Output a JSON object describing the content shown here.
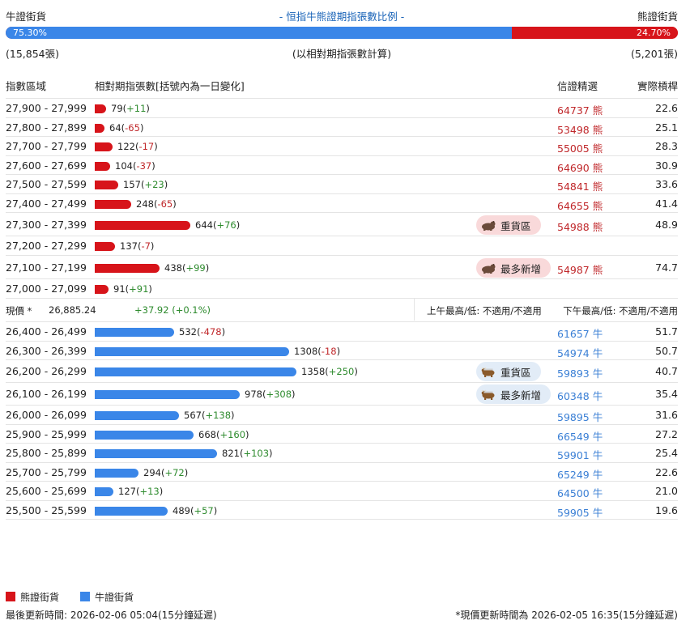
{
  "header": {
    "bull_label": "牛證街貨",
    "title": "- 恒指牛熊證期指張數比例 -",
    "bear_label": "熊證街貨",
    "bull_pct": "75.30%",
    "bear_pct": "24.70%",
    "bull_count": "(15,854張)",
    "basis_note": "(以相對期指張數計算)",
    "bear_count": "(5,201張)"
  },
  "columns": {
    "range": "指數區域",
    "count": "相對期指張數[括號內為一日變化]",
    "issuer": "信證精選",
    "leverage": "實際槓桿"
  },
  "colors": {
    "bear": "#d7141a",
    "bull": "#3a86e8"
  },
  "chart_data": {
    "type": "bar",
    "orientation": "horizontal",
    "ratio": {
      "bull_pct": 75.3,
      "bear_pct": 24.7
    },
    "bear_rows": [
      {
        "range": "27,900 - 27,999",
        "value": 79,
        "chg": "+11",
        "issuer": "64737 熊",
        "lev": "22.6"
      },
      {
        "range": "27,800 - 27,899",
        "value": 64,
        "chg": "-65",
        "issuer": "53498 熊",
        "lev": "25.1"
      },
      {
        "range": "27,700 - 27,799",
        "value": 122,
        "chg": "-17",
        "issuer": "55005 熊",
        "lev": "28.3"
      },
      {
        "range": "27,600 - 27,699",
        "value": 104,
        "chg": "-37",
        "issuer": "64690 熊",
        "lev": "30.9"
      },
      {
        "range": "27,500 - 27,599",
        "value": 157,
        "chg": "+23",
        "issuer": "54841 熊",
        "lev": "33.6"
      },
      {
        "range": "27,400 - 27,499",
        "value": 248,
        "chg": "-65",
        "issuer": "64655 熊",
        "lev": "41.4"
      },
      {
        "range": "27,300 - 27,399",
        "value": 644,
        "chg": "+76",
        "tag": "重貨區",
        "issuer": "54988 熊",
        "lev": "48.9"
      },
      {
        "range": "27,200 - 27,299",
        "value": 137,
        "chg": "-7",
        "issuer": "",
        "lev": ""
      },
      {
        "range": "27,100 - 27,199",
        "value": 438,
        "chg": "+99",
        "tag": "最多新增",
        "issuer": "54987 熊",
        "lev": "74.7"
      },
      {
        "range": "27,000 - 27,099",
        "value": 91,
        "chg": "+91",
        "issuer": "",
        "lev": ""
      }
    ],
    "bull_rows": [
      {
        "range": "26,400 - 26,499",
        "value": 532,
        "chg": "-478",
        "issuer": "61657 牛",
        "lev": "51.7"
      },
      {
        "range": "26,300 - 26,399",
        "value": 1308,
        "chg": "-18",
        "issuer": "54974 牛",
        "lev": "50.7"
      },
      {
        "range": "26,200 - 26,299",
        "value": 1358,
        "chg": "+250",
        "tag": "重貨區",
        "issuer": "59893 牛",
        "lev": "40.7"
      },
      {
        "range": "26,100 - 26,199",
        "value": 978,
        "chg": "+308",
        "tag": "最多新增",
        "issuer": "60348 牛",
        "lev": "35.4"
      },
      {
        "range": "26,000 - 26,099",
        "value": 567,
        "chg": "+138",
        "issuer": "59895 牛",
        "lev": "31.6"
      },
      {
        "range": "25,900 - 25,999",
        "value": 668,
        "chg": "+160",
        "issuer": "66549 牛",
        "lev": "27.2"
      },
      {
        "range": "25,800 - 25,899",
        "value": 821,
        "chg": "+103",
        "issuer": "59901 牛",
        "lev": "25.4"
      },
      {
        "range": "25,700 - 25,799",
        "value": 294,
        "chg": "+72",
        "issuer": "65249 牛",
        "lev": "22.6"
      },
      {
        "range": "25,600 - 25,699",
        "value": 127,
        "chg": "+13",
        "issuer": "64500 牛",
        "lev": "21.0"
      },
      {
        "range": "25,500 - 25,599",
        "value": 489,
        "chg": "+57",
        "issuer": "59905 牛",
        "lev": "19.6"
      }
    ]
  },
  "price": {
    "label": "現價 *",
    "value": "26,885.24",
    "change": "+37.92 (+0.1%)",
    "am_hilo": "上午最高/低: 不適用/不適用",
    "pm_hilo": "下午最高/低: 不適用/不適用"
  },
  "legend": {
    "bear": "熊證街貨",
    "bull": "牛證街貨"
  },
  "footer": {
    "last_update": "最後更新時間: 2026-02-06 05:04(15分鐘延遲)",
    "price_update": "*現價更新時間為 2026-02-05 16:35(15分鐘延遲)"
  }
}
